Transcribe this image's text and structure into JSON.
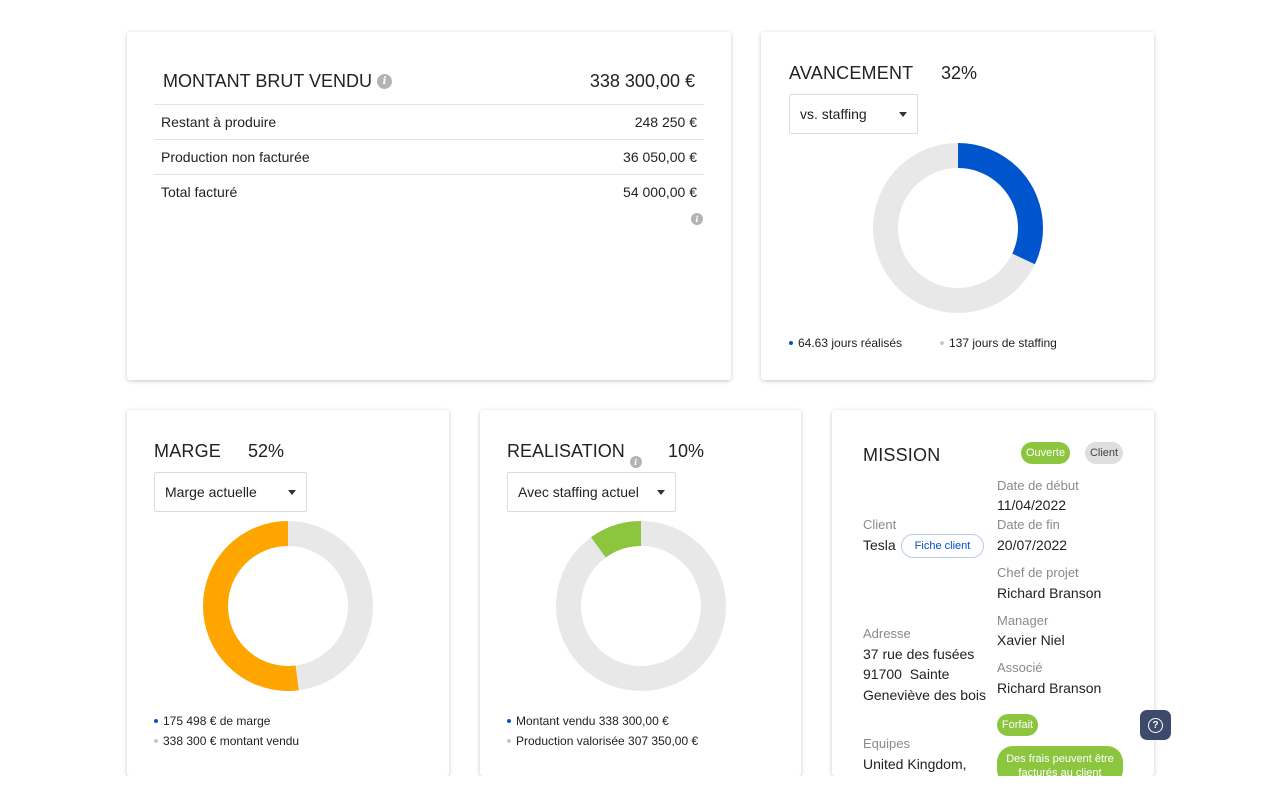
{
  "montant": {
    "title": "MONTANT BRUT VENDU",
    "total": "338 300,00 €",
    "rows": [
      {
        "label": "Restant à produire",
        "value": "248 250 €"
      },
      {
        "label": "Production non facturée",
        "value": "36 050,00 €"
      },
      {
        "label": "Total facturé",
        "value": "54 000,00 €"
      }
    ]
  },
  "avancement": {
    "title": "AVANCEMENT",
    "percent": "32%",
    "fraction": 0.32,
    "dropdown": "vs. staffing",
    "legend_done": "64.63 jours réalisés",
    "legend_staffing": "137 jours de staffing",
    "color": "#0055cc"
  },
  "marge": {
    "title": "MARGE",
    "percent": "52%",
    "fraction": 0.52,
    "dropdown": "Marge actuelle",
    "legend_marge": "175 498 € de marge",
    "legend_vendu": "338 300 € montant vendu",
    "color": "#ffa500"
  },
  "realisation": {
    "title": "REALISATION",
    "percent": "10%",
    "fraction": 0.1,
    "dropdown": "Avec staffing actuel",
    "legend_vendu": "Montant vendu 338 300,00 €",
    "legend_valorisee": "Production valorisée 307 350,00 €",
    "color": "#8cc63f"
  },
  "mission": {
    "title": "MISSION",
    "badge_status": "Ouverte",
    "badge_type": "Client",
    "client_label": "Client",
    "client_value": "Tesla",
    "fiche_client": "Fiche client",
    "adresse_label": "Adresse",
    "adresse_line1": "37 rue des fusées",
    "adresse_line2": "91700  Sainte",
    "adresse_line3": "Geneviève des bois",
    "equipes_label": "Equipes",
    "equipes_value": "United Kingdom,",
    "date_debut_label": "Date de début",
    "date_debut_value": "11/04/2022",
    "date_fin_label": "Date de fin",
    "date_fin_value": "20/07/2022",
    "chef_label": "Chef de projet",
    "chef_value": "Richard Branson",
    "manager_label": "Manager",
    "manager_value": "Xavier Niel",
    "associe_label": "Associé",
    "associe_value": "Richard Branson",
    "badge_forfait": "Forfait",
    "badge_frais_line1": "Des frais peuvent être",
    "badge_frais_line2": "facturés au client"
  },
  "colors": {
    "track": "#e8e8e8",
    "legend_blue": "#0055cc",
    "legend_grey": "#c8c8c8"
  }
}
